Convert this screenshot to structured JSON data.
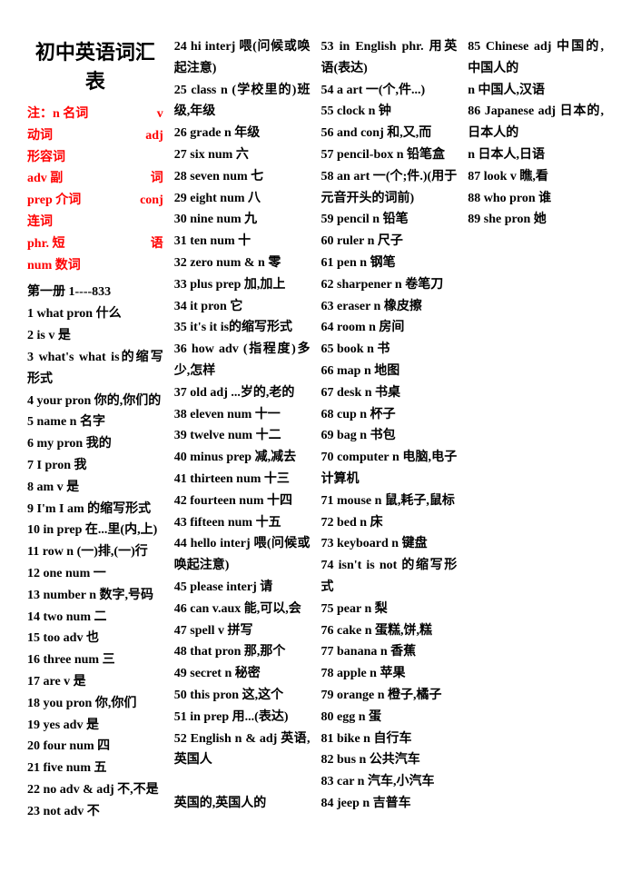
{
  "title": "初中英语词汇表",
  "note_lines": [
    {
      "left": "注：n 名词",
      "right": "v"
    },
    {
      "left": "动词",
      "right": "adj"
    },
    {
      "left": "形容词",
      "right": ""
    },
    {
      "left": "adv 副",
      "right": "词"
    },
    {
      "left": "prep 介词",
      "right": "conj"
    },
    {
      "left": "连词",
      "right": ""
    },
    {
      "left": "phr. 短",
      "right": "语"
    },
    {
      "left": "num 数词",
      "right": ""
    }
  ],
  "book_section": "第一册 1----833",
  "entries": [
    "1 what pron 什么",
    "2 is v 是",
    "3 what's what is的缩写形式",
    "4 your pron 你的,你们的",
    "5 name n 名字",
    "6 my pron 我的",
    "7 I pron 我",
    "8 am v 是",
    "9 I'm I am 的缩写形式",
    "10 in prep 在...里(内,上)",
    "11 row n (一)排,(一)行",
    "12 one num 一",
    "13 number n 数字,号码",
    "14 two num 二",
    "15 too adv 也",
    "16 three num 三",
    "17 are v 是",
    "18 you pron 你,你们",
    "19 yes adv 是",
    "20 four num 四",
    "21 five num 五",
    "22 no adv & adj 不,不是",
    "23 not adv 不",
    "24 hi interj 喂(问候或唤起注意)",
    "25 class n (学校里的)班级,年级",
    "26 grade n 年级",
    "27 six num 六",
    "28 seven num 七",
    "29 eight num 八",
    "30 nine num 九",
    "31 ten num 十",
    "32 zero num & n 零",
    "33 plus prep 加,加上",
    "34 it pron 它",
    "35 it's it is的缩写形式",
    "36 how adv (指程度)多少,怎样",
    "37 old adj ...岁的,老的",
    "38 eleven num 十一",
    "39 twelve num 十二",
    "40 minus prep 减,减去",
    "41 thirteen num 十三",
    "42 fourteen num 十四",
    "43 fifteen num 十五",
    "44 hello interj 喂(问候或唤起注意)",
    "45 please interj 请",
    "46 can v.aux 能,可以,会",
    "47 spell v 拼写",
    "48 that pron 那,那个",
    "49 secret n 秘密",
    "50 this pron 这,这个",
    "51 in prep 用...(表达)",
    "52 English n & adj 英语,英国人",
    "",
    "英国的,英国人的",
    "53 in English phr. 用英语(表达)",
    "54 a art 一(个,件...)",
    "55 clock n 钟",
    "56 and conj 和,又,而",
    "57 pencil-box n 铅笔盒",
    "58 an art 一(个;件.)(用于元音开头的词前)",
    "59 pencil n 铅笔",
    "60 ruler n 尺子",
    "61 pen n 钢笔",
    "62 sharpener n 卷笔刀",
    "63 eraser n 橡皮擦",
    "64 room n 房间",
    "65 book n 书",
    "66 map n 地图",
    "67 desk n 书桌",
    "68 cup n 杯子",
    "69 bag n 书包",
    "70 computer n 电脑,电子计算机",
    "71 mouse n 鼠,耗子,鼠标",
    "72 bed n 床",
    "73 keyboard n 键盘",
    "74 isn't is not 的缩写形式",
    "75 pear n 梨",
    "76 cake n 蛋糕,饼,糕",
    "77 banana n 香蕉",
    "78 apple n 苹果",
    "79 orange n 橙子,橘子",
    "80 egg n 蛋",
    "81 bike n 自行车",
    "82 bus n 公共汽车",
    "83 car n 汽车,小汽车",
    "84 jeep n 吉普车",
    "85 Chinese adj 中国的,中国人的",
    "       n 中国人,汉语",
    "86 Japanese adj 日本的,日本人的",
    "       n 日本人,日语",
    "87 look v 瞧,看",
    "88 who pron 谁",
    "89 she pron 她"
  ]
}
